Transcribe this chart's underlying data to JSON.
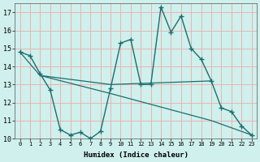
{
  "xlabel": "Humidex (Indice chaleur)",
  "xlim": [
    -0.5,
    23.5
  ],
  "ylim": [
    10,
    17.5
  ],
  "xticks": [
    0,
    1,
    2,
    3,
    4,
    5,
    6,
    7,
    8,
    9,
    10,
    11,
    12,
    13,
    14,
    15,
    16,
    17,
    18,
    19,
    20,
    21,
    22,
    23
  ],
  "yticks": [
    10,
    11,
    12,
    13,
    14,
    15,
    16,
    17
  ],
  "bg_color": "#cff0ec",
  "grid_color": "#e8b4b4",
  "line_color": "#1a6e6e",
  "line1_x": [
    0,
    1,
    2,
    3,
    4,
    5,
    6,
    7,
    8,
    9,
    10,
    11,
    12,
    13,
    14,
    15,
    16,
    17,
    18,
    19,
    20,
    21,
    22,
    23
  ],
  "line1_y": [
    14.8,
    14.6,
    13.6,
    12.7,
    10.5,
    10.2,
    10.35,
    10.0,
    10.4,
    12.8,
    15.3,
    15.5,
    13.0,
    13.0,
    17.3,
    15.9,
    16.8,
    15.0,
    14.4,
    13.2,
    11.7,
    11.5,
    10.7,
    10.2
  ],
  "line2_x": [
    0,
    2,
    9,
    19
  ],
  "line2_y": [
    14.8,
    13.5,
    13.0,
    13.2
  ],
  "line3_x": [
    2,
    9,
    19,
    23
  ],
  "line3_y": [
    13.5,
    12.5,
    11.0,
    10.2
  ]
}
